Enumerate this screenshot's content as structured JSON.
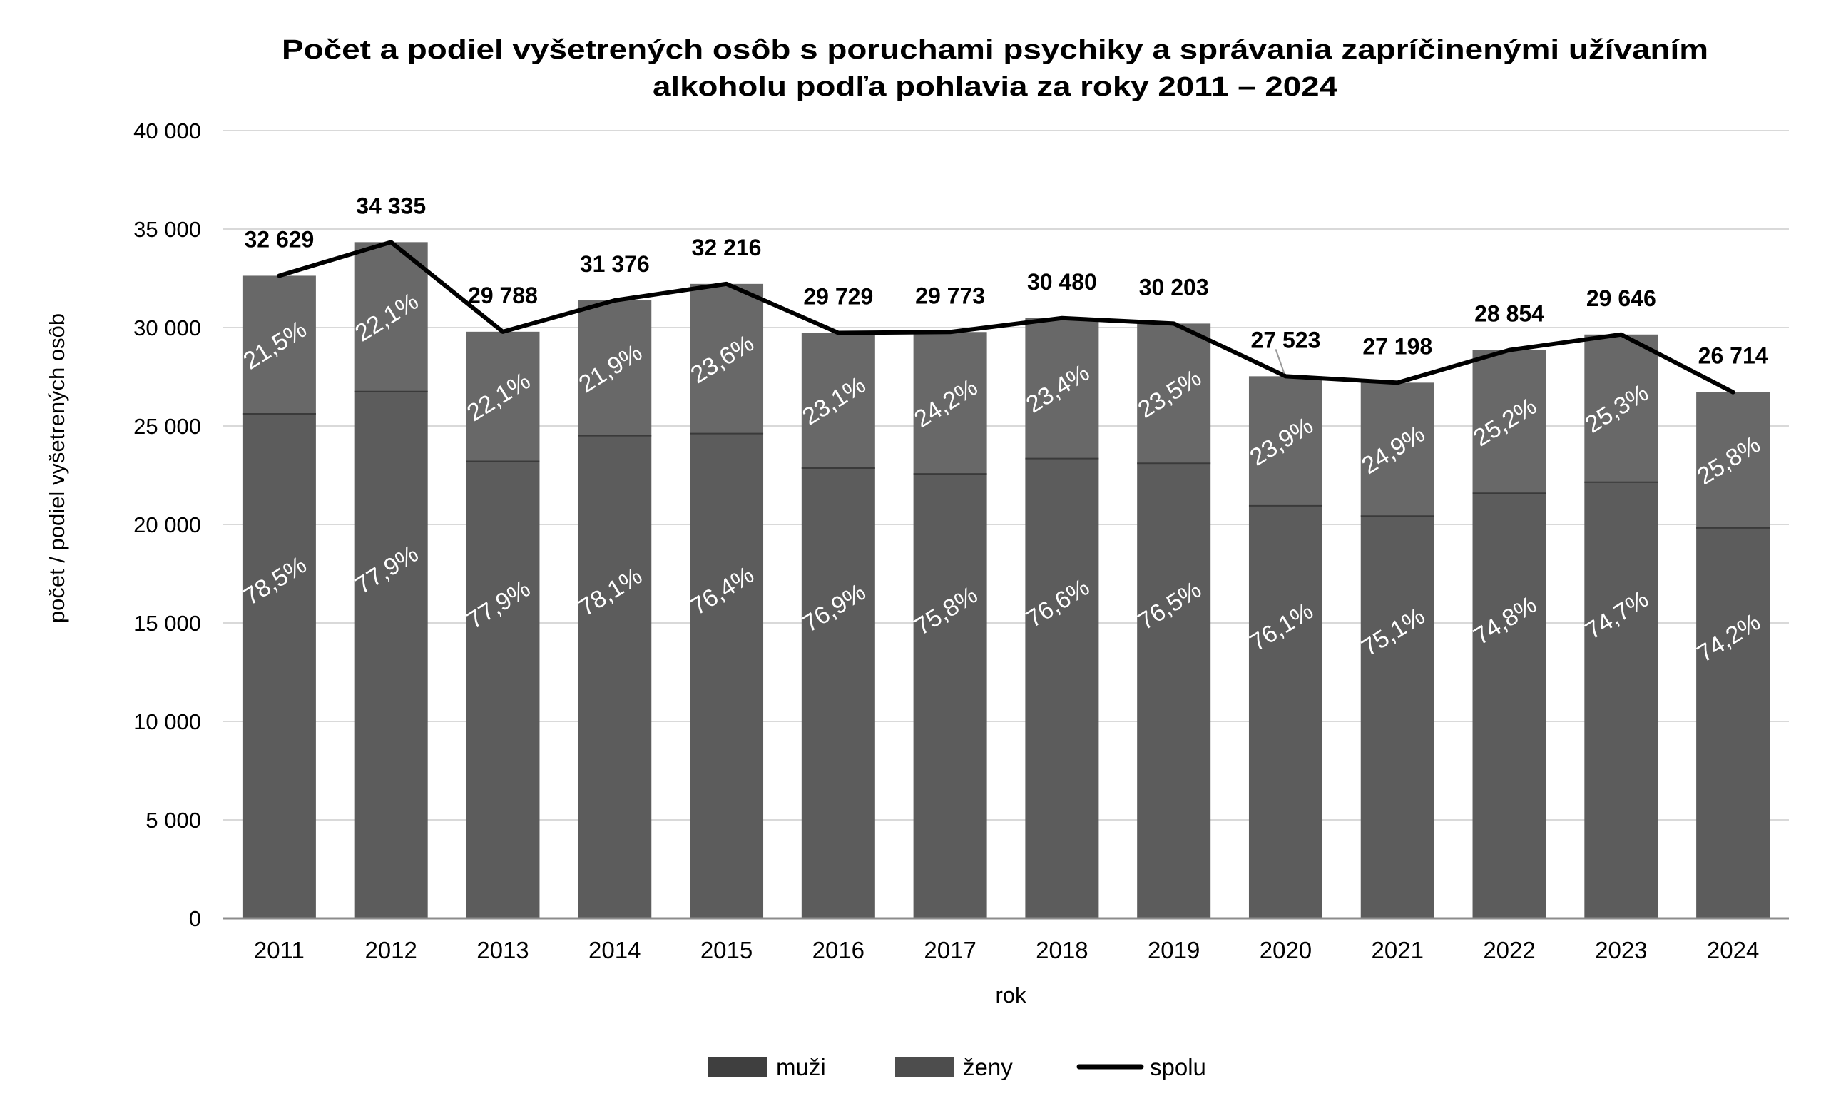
{
  "chart_data": {
    "type": "bar",
    "subtype": "stacked_bar_with_line",
    "title": "Počet a podiel vyšetrených osôb s poruchami psychiky a správania zapríčinenými užívaním alkoholu podľa pohlavia za roky 2011 – 2024",
    "title_lines": [
      "Počet a podiel vyšetrených osôb s poruchami psychiky a správania zapríčinenými užívaním",
      "alkoholu podľa pohlavia za roky 2011 – 2024"
    ],
    "xlabel": "rok",
    "ylabel": "počet / podiel vyšetrených osôb",
    "ylim": [
      0,
      40000
    ],
    "yticks": [
      0,
      5000,
      10000,
      15000,
      20000,
      25000,
      30000,
      35000,
      40000
    ],
    "ytick_labels": [
      "0",
      "5 000",
      "10 000",
      "15 000",
      "20 000",
      "25 000",
      "30 000",
      "35 000",
      "40 000"
    ],
    "grid": true,
    "legend_position": "bottom",
    "categories": [
      "2011",
      "2012",
      "2013",
      "2014",
      "2015",
      "2016",
      "2017",
      "2018",
      "2019",
      "2020",
      "2021",
      "2022",
      "2023",
      "2024"
    ],
    "series": [
      {
        "name": "muži",
        "kind": "bar",
        "color": "#5c5c5c",
        "values": [
          25614,
          26747,
          23205,
          24505,
          24613,
          22862,
          22568,
          23348,
          23105,
          20945,
          20426,
          21583,
          22146,
          19822
        ],
        "share_labels": [
          "78,5%",
          "77,9%",
          "77,9%",
          "78,1%",
          "76,4%",
          "76,9%",
          "75,8%",
          "76,6%",
          "76,5%",
          "76,1%",
          "75,1%",
          "74,8%",
          "74,7%",
          "74,2%"
        ]
      },
      {
        "name": "ženy",
        "kind": "bar",
        "color": "#686868",
        "values": [
          7015,
          7588,
          6583,
          6871,
          7603,
          6867,
          7205,
          7132,
          7098,
          6578,
          6772,
          7271,
          7500,
          6892
        ],
        "share_labels": [
          "21,5%",
          "22,1%",
          "22,1%",
          "21,9%",
          "23,6%",
          "23,1%",
          "24,2%",
          "23,4%",
          "23,5%",
          "23,9%",
          "24,9%",
          "25,2%",
          "25,3%",
          "25,8%"
        ]
      },
      {
        "name": "spolu",
        "kind": "line",
        "color": "#000000",
        "values": [
          32629,
          34335,
          29788,
          31376,
          32216,
          29729,
          29773,
          30480,
          30203,
          27523,
          27198,
          28854,
          29646,
          26714
        ],
        "value_labels": [
          "32 629",
          "34 335",
          "29 788",
          "31 376",
          "32 216",
          "29 729",
          "29 773",
          "30 480",
          "30 203",
          "27 523",
          "27 198",
          "28 854",
          "29 646",
          "26 714"
        ]
      }
    ],
    "legend": [
      {
        "label": "muži",
        "marker": "box",
        "color": "#3f3f3f"
      },
      {
        "label": "ženy",
        "marker": "box",
        "color": "#4d4d4d"
      },
      {
        "label": "spolu",
        "marker": "line",
        "color": "#000000"
      }
    ]
  }
}
